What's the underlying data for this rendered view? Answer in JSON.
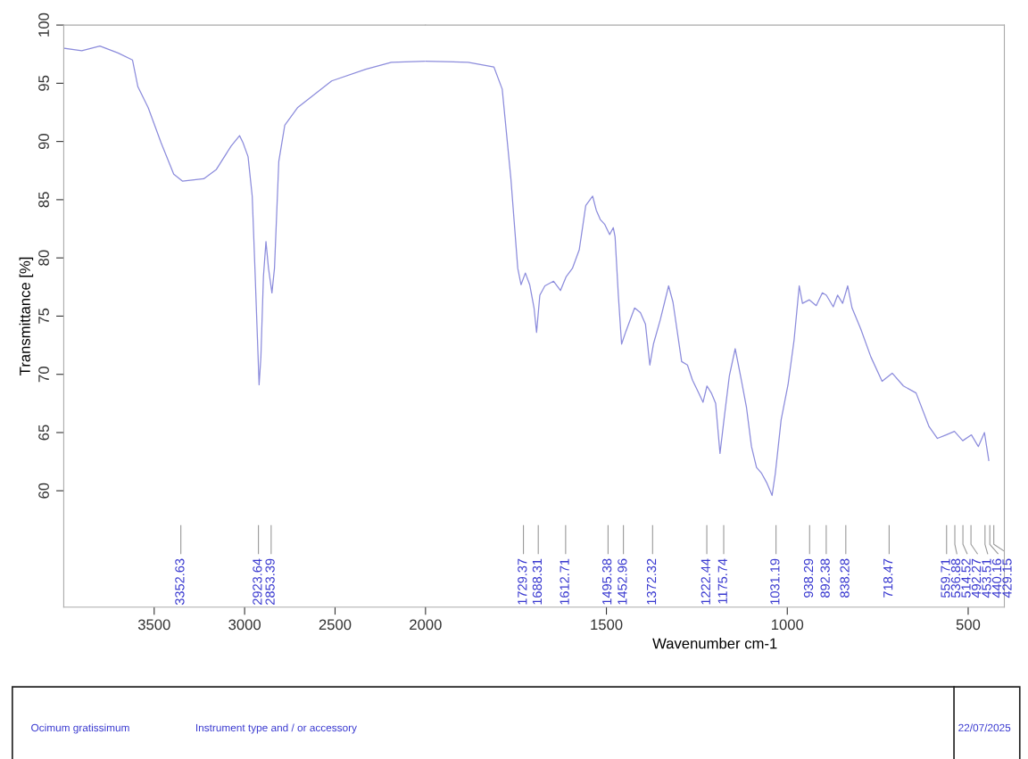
{
  "chart_data": [
    {
      "type": "line",
      "ylabel": "Transmittance [%]",
      "xlim": [
        4000,
        2000
      ],
      "ylim": [
        50,
        100
      ],
      "xticks": [
        3500,
        3000,
        2500
      ],
      "yticks": [
        60,
        65,
        70,
        75,
        80,
        85,
        90,
        95,
        100
      ],
      "grid": false,
      "legend": false,
      "marker": "none",
      "line_style": "solid",
      "series": [
        {
          "color": "#8c8cdc",
          "x": [
            3996,
            3900,
            3800,
            3700,
            3620,
            3590,
            3533,
            3462,
            3392,
            3344,
            3226,
            3156,
            3075,
            3028,
            3009,
            2981,
            2958,
            2943,
            2929,
            2920,
            2910,
            2896,
            2882,
            2868,
            2849,
            2835,
            2811,
            2778,
            2708,
            2519,
            2330,
            2189,
            2000
          ],
          "values": [
            98.0,
            97.8,
            98.2,
            97.6,
            97.0,
            94.7,
            92.9,
            89.9,
            87.2,
            86.6,
            86.8,
            87.6,
            89.6,
            90.5,
            89.9,
            88.7,
            85.3,
            79.1,
            73.0,
            69.1,
            71.5,
            78.4,
            81.4,
            79.1,
            77.0,
            79.1,
            88.3,
            91.4,
            92.9,
            95.2,
            96.2,
            96.8,
            96.9
          ]
        }
      ],
      "ref_lines": [
        {
          "axis": "x",
          "value": 3352.63,
          "label": "3352.63"
        },
        {
          "axis": "x",
          "value": 2923.64,
          "label": "2923.64"
        },
        {
          "axis": "x",
          "value": 2853.39,
          "label": "2853.39"
        }
      ],
      "annotations": [
        "Ocimum gratissimum",
        "Instrument type and / or accessory",
        "22/07/2025"
      ]
    },
    {
      "type": "line",
      "xlabel": "Wavenumber cm-1",
      "xlim": [
        2000,
        400
      ],
      "ylim": [
        50,
        100
      ],
      "xticks": [
        2000,
        1500,
        1000,
        500
      ],
      "yticks": [
        60,
        65,
        70,
        75,
        80,
        85,
        90,
        95,
        100
      ],
      "tick_labels": "x",
      "grid": false,
      "legend": false,
      "marker": "none",
      "line_style": "solid",
      "series": [
        {
          "color": "#8c8cdc",
          "x": [
            2000,
            1882,
            1811,
            1788,
            1764,
            1745,
            1736,
            1724,
            1712,
            1700,
            1693,
            1684,
            1670,
            1646,
            1627,
            1611,
            1594,
            1575,
            1557,
            1538,
            1528,
            1517,
            1505,
            1491,
            1481,
            1476,
            1467,
            1458,
            1446,
            1422,
            1406,
            1392,
            1380,
            1370,
            1351,
            1328,
            1316,
            1292,
            1276,
            1262,
            1245,
            1233,
            1222,
            1210,
            1198,
            1186,
            1175,
            1160,
            1144,
            1127,
            1113,
            1099,
            1085,
            1071,
            1057,
            1042,
            1033,
            1017,
            998,
            981,
            967,
            958,
            939,
            920,
            903,
            892,
            873,
            861,
            847,
            833,
            821,
            797,
            769,
            738,
            710,
            679,
            644,
            608,
            585,
            561,
            538,
            515,
            491,
            472,
            455,
            443
          ],
          "values": [
            96.9,
            96.8,
            96.4,
            94.5,
            86.8,
            79.1,
            77.7,
            78.7,
            77.7,
            75.7,
            73.6,
            76.8,
            77.6,
            78.0,
            77.2,
            78.4,
            79.1,
            80.7,
            84.5,
            85.3,
            84.1,
            83.3,
            82.9,
            82.0,
            82.6,
            81.8,
            76.8,
            72.6,
            73.7,
            75.7,
            75.3,
            74.3,
            70.8,
            72.6,
            74.7,
            77.6,
            76.2,
            71.1,
            70.8,
            69.5,
            68.4,
            67.6,
            69.0,
            68.4,
            67.5,
            63.2,
            66.1,
            69.9,
            72.2,
            69.5,
            67.2,
            63.8,
            62.0,
            61.5,
            60.7,
            59.6,
            61.5,
            66.1,
            69.1,
            73.0,
            77.6,
            76.1,
            76.4,
            75.9,
            77.0,
            76.8,
            75.8,
            76.8,
            76.1,
            77.6,
            75.7,
            73.9,
            71.5,
            69.4,
            70.1,
            69.0,
            68.4,
            65.5,
            64.5,
            64.8,
            65.1,
            64.3,
            64.8,
            63.8,
            65.0,
            62.6
          ]
        }
      ],
      "ref_lines": [
        {
          "axis": "x",
          "value": 1729.37,
          "label": "1729.37"
        },
        {
          "axis": "x",
          "value": 1688.31,
          "label": "1688.31"
        },
        {
          "axis": "x",
          "value": 1612.71,
          "label": "1612.71"
        },
        {
          "axis": "x",
          "value": 1495.38,
          "label": "1495.38"
        },
        {
          "axis": "x",
          "value": 1452.96,
          "label": "1452.96"
        },
        {
          "axis": "x",
          "value": 1372.32,
          "label": "1372.32"
        },
        {
          "axis": "x",
          "value": 1222.44,
          "label": "1222.44"
        },
        {
          "axis": "x",
          "value": 1175.74,
          "label": "1175.74"
        },
        {
          "axis": "x",
          "value": 1031.19,
          "label": "1031.19"
        },
        {
          "axis": "x",
          "value": 938.29,
          "label": "938.29"
        },
        {
          "axis": "x",
          "value": 892.38,
          "label": "892.38"
        },
        {
          "axis": "x",
          "value": 838.28,
          "label": "838.28"
        },
        {
          "axis": "x",
          "value": 718.47,
          "label": "718.47"
        },
        {
          "axis": "x",
          "value": 559.71,
          "label": "559.71"
        },
        {
          "axis": "x",
          "value": 536.88,
          "label": "536.88"
        },
        {
          "axis": "x",
          "value": 514.52,
          "label": "514.52"
        },
        {
          "axis": "x",
          "value": 492.27,
          "label": "492.27"
        },
        {
          "axis": "x",
          "value": 453.51,
          "label": "453.51"
        },
        {
          "axis": "x",
          "value": 440.16,
          "label": "440.16"
        },
        {
          "axis": "x",
          "value": 429.15,
          "label": "429.15"
        }
      ]
    }
  ]
}
